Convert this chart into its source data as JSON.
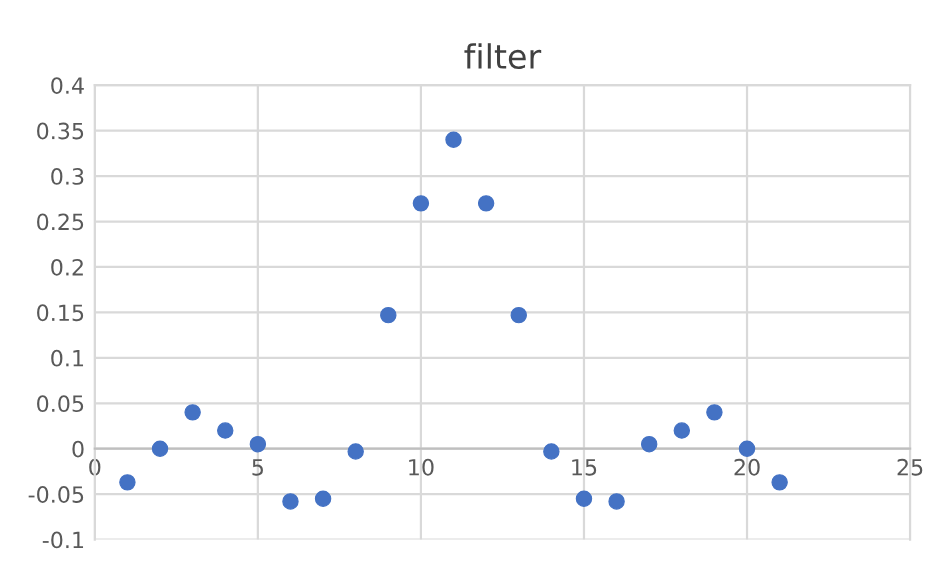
{
  "chart_data": {
    "type": "scatter",
    "title": "filter",
    "x": [
      1,
      2,
      3,
      4,
      5,
      6,
      7,
      8,
      9,
      10,
      11,
      12,
      13,
      14,
      15,
      16,
      17,
      18,
      19,
      20,
      21
    ],
    "values": [
      -0.037,
      0,
      0.04,
      0.02,
      0.005,
      -0.058,
      -0.055,
      -0.003,
      0.147,
      0.27,
      0.34,
      0.27,
      0.147,
      -0.003,
      -0.055,
      -0.058,
      0.005,
      0.02,
      0.04,
      0,
      -0.037
    ],
    "color": "#4472c4",
    "marker": "circle",
    "grid": true,
    "xlim": [
      0,
      25
    ],
    "xticks": [
      0,
      5,
      10,
      15,
      20,
      25
    ],
    "ylim": [
      -0.1,
      0.4
    ],
    "yticks": [
      -0.1,
      -0.05,
      0,
      0.05,
      0.1,
      0.15,
      0.2,
      0.25,
      0.3,
      0.35,
      0.4
    ]
  }
}
